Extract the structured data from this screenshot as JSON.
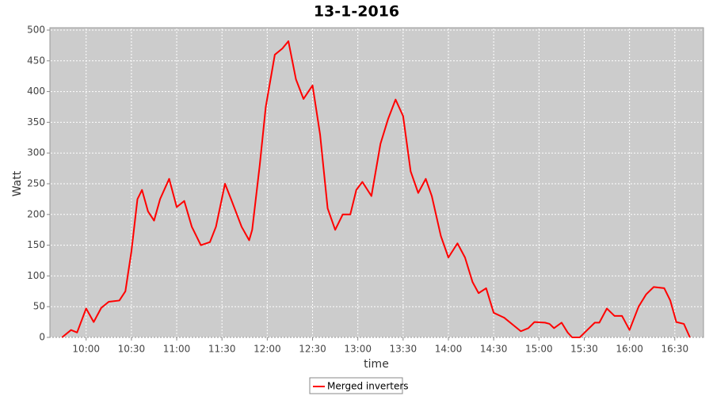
{
  "chart_data": {
    "type": "line",
    "title": "13-1-2016",
    "x_label": "time",
    "y_label": "Watt",
    "x": [
      "09:44",
      "09:50",
      "09:54",
      "10:00",
      "10:05",
      "10:10",
      "10:15",
      "10:22",
      "10:26",
      "10:30",
      "10:34",
      "10:37",
      "10:41",
      "10:45",
      "10:49",
      "10:55",
      "11:00",
      "11:05",
      "11:10",
      "11:16",
      "11:22",
      "11:26",
      "11:32",
      "11:36",
      "11:43",
      "11:48",
      "11:50",
      "11:55",
      "11:59",
      "12:05",
      "12:10",
      "12:14",
      "12:19",
      "12:24",
      "12:30",
      "12:35",
      "12:40",
      "12:45",
      "12:50",
      "12:55",
      "12:59",
      "13:03",
      "13:09",
      "13:15",
      "13:20",
      "13:25",
      "13:30",
      "13:35",
      "13:40",
      "13:45",
      "13:49",
      "13:55",
      "14:00",
      "14:06",
      "14:11",
      "14:16",
      "14:20",
      "14:25",
      "14:30",
      "14:37",
      "14:43",
      "14:48",
      "14:53",
      "14:57",
      "15:04",
      "15:07",
      "15:10",
      "15:15",
      "15:19",
      "15:22",
      "15:27",
      "15:32",
      "15:37",
      "15:40",
      "15:45",
      "15:50",
      "15:55",
      "16:00",
      "16:06",
      "16:11",
      "16:16",
      "16:23",
      "16:27",
      "16:31",
      "16:36",
      "16:40"
    ],
    "series": [
      {
        "name": "Merged inverters",
        "color": "#ff0000",
        "values": [
          0,
          12,
          8,
          47,
          25,
          48,
          58,
          60,
          75,
          140,
          225,
          240,
          205,
          190,
          225,
          258,
          212,
          222,
          180,
          150,
          155,
          180,
          250,
          225,
          180,
          158,
          175,
          280,
          375,
          460,
          470,
          482,
          420,
          388,
          410,
          330,
          210,
          175,
          200,
          200,
          240,
          253,
          230,
          315,
          355,
          387,
          360,
          270,
          235,
          258,
          230,
          165,
          130,
          153,
          130,
          90,
          72,
          80,
          40,
          32,
          20,
          10,
          15,
          25,
          24,
          22,
          15,
          24,
          8,
          0,
          0,
          12,
          24,
          24,
          47,
          35,
          35,
          12,
          50,
          70,
          82,
          80,
          60,
          25,
          22,
          0
        ]
      }
    ],
    "xlim": [
      "09:36",
      "16:49"
    ],
    "xticks": [
      "10:00",
      "10:30",
      "11:00",
      "11:30",
      "12:00",
      "12:30",
      "13:00",
      "13:30",
      "14:00",
      "14:30",
      "15:00",
      "15:30",
      "16:00",
      "16:30"
    ],
    "ylim": [
      0,
      500
    ],
    "yticks": [
      0,
      50,
      100,
      150,
      200,
      250,
      300,
      350,
      400,
      450,
      500
    ],
    "grid": true,
    "legend": "bottom"
  }
}
